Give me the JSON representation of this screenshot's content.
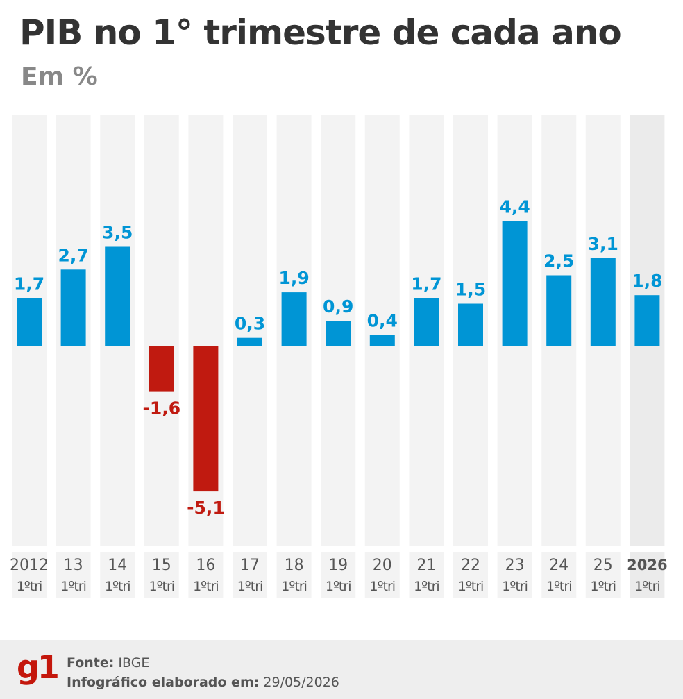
{
  "title": "PIB no 1° trimestre de cada ano",
  "subtitle": "Em %",
  "footer": {
    "source_label": "Fonte:",
    "source_value": "IBGE",
    "made_label": "Infográfico elaborado em:",
    "made_value": "29/05/2026",
    "logo": "g1"
  },
  "colors": {
    "positive": "#0095d5",
    "negative": "#c01a10",
    "column_bg": "#f3f3f3",
    "highlight_bg": "#ebebeb"
  },
  "chart_data": {
    "type": "bar",
    "categories": [
      "2012",
      "13",
      "14",
      "15",
      "16",
      "17",
      "18",
      "19",
      "20",
      "21",
      "22",
      "23",
      "24",
      "25",
      "2026"
    ],
    "sublabel": "1ºtri",
    "highlight": "2026",
    "values": [
      1.7,
      2.7,
      3.5,
      -1.6,
      -5.1,
      0.3,
      1.9,
      0.9,
      0.4,
      1.7,
      1.5,
      4.4,
      2.5,
      3.1,
      1.8
    ],
    "value_labels": [
      "1,7",
      "2,7",
      "3,5",
      "-1,6",
      "-5,1",
      "0,3",
      "1,9",
      "0,9",
      "0,4",
      "1,7",
      "1,5",
      "4,4",
      "2,5",
      "3,1",
      "1,8"
    ]
  }
}
